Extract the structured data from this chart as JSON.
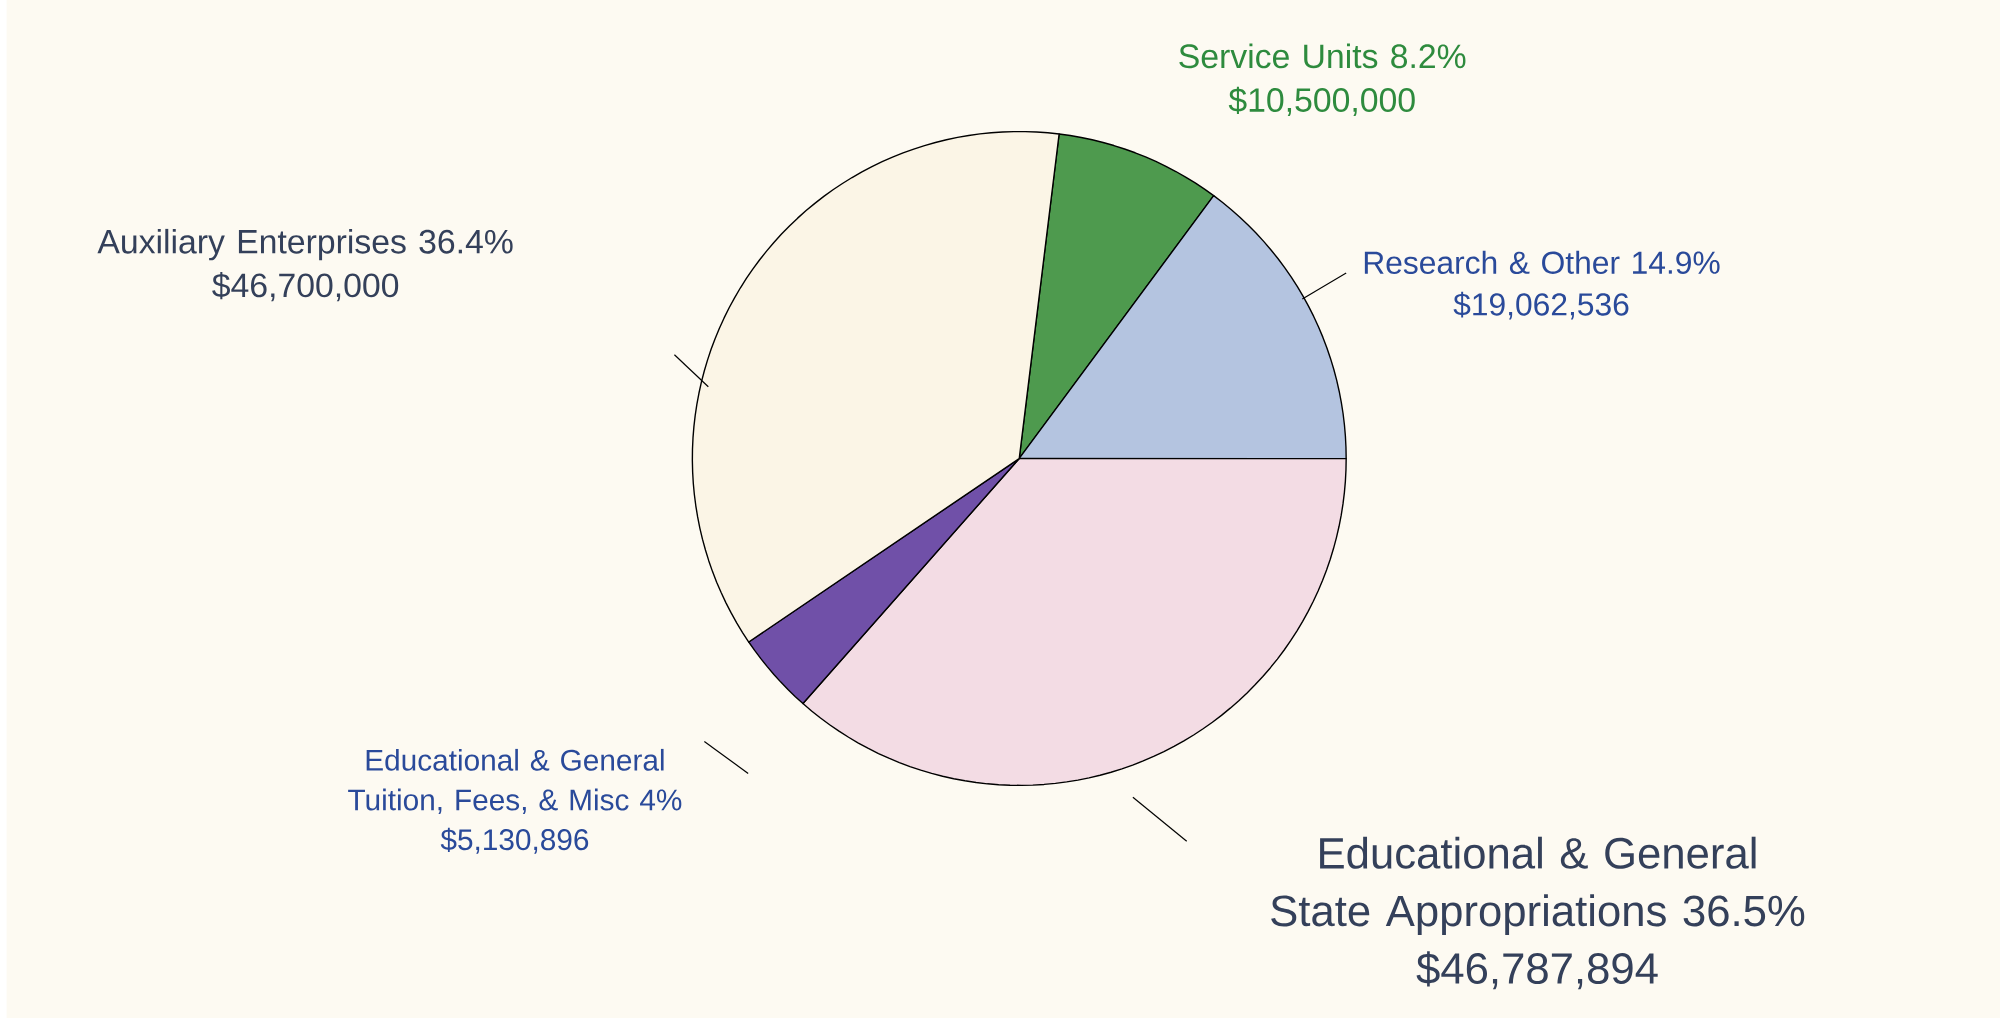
{
  "chart_data": {
    "type": "pie",
    "categories": [
      "Service Units 8.2%",
      "Research & Other 14.9%",
      "Educational & General State Appropriations 36.5%",
      "Educational & General Tuition, Fees, & Misc 4%",
      "Auxiliary Enterprises 36.4%"
    ],
    "values": [
      10500000,
      19062536,
      46787894,
      5130896,
      46700000
    ],
    "value_labels": [
      "$10,500,000",
      "$19,062,536",
      "$46,787,894",
      "$5,130,896",
      "$46,700,000"
    ],
    "colors": [
      "#4e9a4e",
      "#b4c4e0",
      "#f3dce4",
      "#7050a8",
      "#fbf5e6"
    ]
  }
}
